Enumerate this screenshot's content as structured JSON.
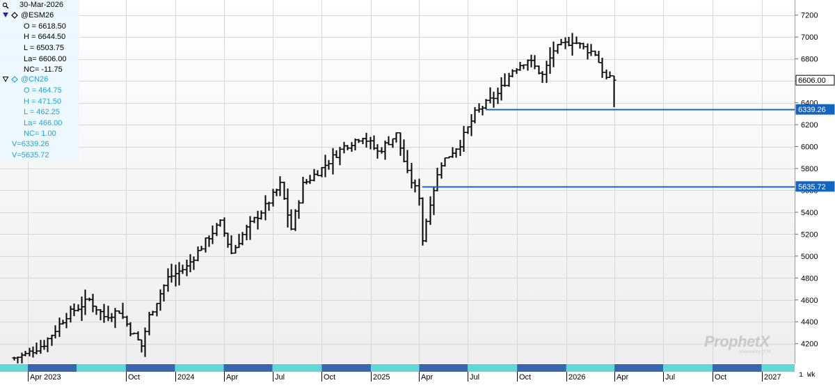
{
  "header": {
    "date": "30-Mar-2026"
  },
  "legend": {
    "primary": {
      "symbol": "@ESM26",
      "open": "O = 6618.50",
      "high": "H = 6644.50",
      "low": "L = 6503.75",
      "last": "La= 6606.00",
      "netchange": "NC= -11.75"
    },
    "secondary": {
      "symbol": "@CN26",
      "open": "O = 464.75",
      "high": "H = 471.50",
      "low": "L = 462.25",
      "last": "La= 466.00",
      "netchange": "NC= 1.00"
    },
    "lines": [
      "V=6339.26",
      "V=5635.72"
    ]
  },
  "timeframe": "1 Wk",
  "brand": {
    "name": "ProphetX",
    "sub": "powered by DTN"
  },
  "colors": {
    "bars": "#000000",
    "hline": "#1565c0",
    "cyan": "#19a7d6",
    "band_cyan": "#5fd8d6",
    "band_blue": "#3a66b0"
  },
  "chart_data": {
    "type": "ohlc",
    "series_name": "@ESM26",
    "frequency": "weekly",
    "y_ticks": [
      4200,
      4400,
      4600,
      4800,
      5000,
      5200,
      5400,
      5600,
      5800,
      6000,
      6200,
      6400,
      6600,
      6800,
      7000,
      7200
    ],
    "ylim": [
      4020,
      7300
    ],
    "x_labels": [
      "Apr 2023",
      "Oct",
      "2024",
      "Apr",
      "Jul",
      "Oct",
      "2025",
      "Apr",
      "Jul",
      "Oct",
      "2026",
      "Apr",
      "Jul",
      "Oct",
      "2027"
    ],
    "x_label_dates": [
      "2023-04-01",
      "2023-10-01",
      "2024-01-01",
      "2024-04-01",
      "2024-07-01",
      "2024-10-01",
      "2025-01-01",
      "2025-04-01",
      "2025-07-01",
      "2025-10-01",
      "2026-01-01",
      "2026-04-01",
      "2026-07-01",
      "2026-10-01",
      "2027-01-01"
    ],
    "last_price": 6606.0,
    "last_price_label": "6606.00",
    "horizontal_lines": [
      {
        "value": 6339.26,
        "label": "6339.26",
        "start": "2025-08-04"
      },
      {
        "value": 5635.72,
        "label": "5635.72",
        "start": "2025-04-07"
      }
    ],
    "anchors": [
      [
        "2023-03-06",
        4070
      ],
      [
        "2023-03-27",
        4100
      ],
      [
        "2023-05-01",
        4200
      ],
      [
        "2023-06-12",
        4460
      ],
      [
        "2023-07-24",
        4600
      ],
      [
        "2023-08-21",
        4450
      ],
      [
        "2023-09-18",
        4500
      ],
      [
        "2023-10-09",
        4320
      ],
      [
        "2023-10-30",
        4180
      ],
      [
        "2023-11-13",
        4450
      ],
      [
        "2023-12-18",
        4800
      ],
      [
        "2024-01-22",
        4900
      ],
      [
        "2024-03-04",
        5180
      ],
      [
        "2024-03-25",
        5300
      ],
      [
        "2024-04-15",
        5030
      ],
      [
        "2024-05-13",
        5250
      ],
      [
        "2024-06-17",
        5450
      ],
      [
        "2024-07-15",
        5650
      ],
      [
        "2024-08-05",
        5250
      ],
      [
        "2024-08-26",
        5650
      ],
      [
        "2024-09-30",
        5800
      ],
      [
        "2024-11-11",
        6000
      ],
      [
        "2024-12-16",
        6100
      ],
      [
        "2025-01-13",
        5950
      ],
      [
        "2025-02-17",
        6110
      ],
      [
        "2025-03-10",
        5750
      ],
      [
        "2025-03-31",
        5550
      ],
      [
        "2025-04-07",
        5150
      ],
      [
        "2025-04-21",
        5500
      ],
      [
        "2025-05-12",
        5850
      ],
      [
        "2025-06-16",
        6030
      ],
      [
        "2025-07-14",
        6300
      ],
      [
        "2025-08-25",
        6480
      ],
      [
        "2025-09-22",
        6700
      ],
      [
        "2025-10-20",
        6800
      ],
      [
        "2025-11-17",
        6650
      ],
      [
        "2025-12-08",
        6880
      ],
      [
        "2026-01-12",
        6970
      ],
      [
        "2026-02-02",
        6900
      ],
      [
        "2026-02-23",
        6850
      ],
      [
        "2026-03-16",
        6620
      ],
      [
        "2026-03-30",
        6606
      ]
    ]
  }
}
